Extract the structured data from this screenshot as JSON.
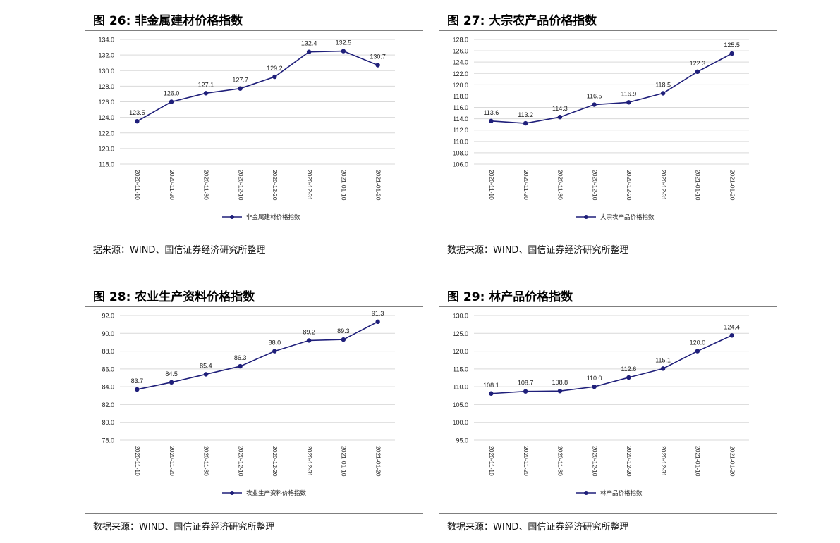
{
  "panels": [
    {
      "title": "图 26:  非金属建材价格指数",
      "source": "据来源：WIND、国信证券经济研究所整理",
      "chart_data": {
        "type": "line",
        "categories": [
          "2020-11-10",
          "2020-11-20",
          "2020-11-30",
          "2020-12-10",
          "2020-12-20",
          "2020-12-31",
          "2021-01-10",
          "2021-01-20"
        ],
        "series": [
          {
            "name": "非金属建材价格指数",
            "values": [
              123.5,
              126.0,
              127.1,
              127.7,
              129.2,
              132.4,
              132.5,
              130.7
            ]
          }
        ],
        "ylim": [
          118.0,
          134.0
        ],
        "yticks": [
          "118.0",
          "120.0",
          "122.0",
          "124.0",
          "126.0",
          "128.0",
          "130.0",
          "132.0",
          "134.0"
        ],
        "data_labels": [
          "123.5",
          "126.0",
          "127.1",
          "127.7",
          "129.2",
          "132.4",
          "132.5",
          "130.7"
        ],
        "grid": true,
        "legend_position": "bottom",
        "color": "#1f1f7a"
      }
    },
    {
      "title": "图 27:  大宗农产品价格指数",
      "source": "数据来源：WIND、国信证券经济研究所整理",
      "chart_data": {
        "type": "line",
        "categories": [
          "2020-11-10",
          "2020-11-20",
          "2020-11-30",
          "2020-12-10",
          "2020-12-20",
          "2020-12-31",
          "2021-01-10",
          "2021-01-20"
        ],
        "series": [
          {
            "name": "大宗农产品价格指数",
            "values": [
              113.6,
              113.2,
              114.3,
              116.5,
              116.9,
              118.5,
              122.3,
              125.5
            ]
          }
        ],
        "ylim": [
          106.0,
          128.0
        ],
        "yticks": [
          "106.0",
          "108.0",
          "110.0",
          "112.0",
          "114.0",
          "116.0",
          "118.0",
          "120.0",
          "122.0",
          "124.0",
          "126.0",
          "128.0"
        ],
        "data_labels": [
          "113.6",
          "113.2",
          "114.3",
          "116.5",
          "116.9",
          "118.5",
          "122.3",
          "125.5"
        ],
        "grid": true,
        "legend_position": "bottom",
        "color": "#1f1f7a"
      }
    },
    {
      "title": "图 28:  农业生产资料价格指数",
      "source": "数据来源：WIND、国信证券经济研究所整理",
      "chart_data": {
        "type": "line",
        "categories": [
          "2020-11-10",
          "2020-11-20",
          "2020-11-30",
          "2020-12-10",
          "2020-12-20",
          "2020-12-31",
          "2021-01-10",
          "2021-01-20"
        ],
        "series": [
          {
            "name": "农业生产资料价格指数",
            "values": [
              83.7,
              84.5,
              85.4,
              86.3,
              88.0,
              89.2,
              89.3,
              91.3
            ]
          }
        ],
        "ylim": [
          78.0,
          92.0
        ],
        "yticks": [
          "78.0",
          "80.0",
          "82.0",
          "84.0",
          "86.0",
          "88.0",
          "90.0",
          "92.0"
        ],
        "data_labels": [
          "83.7",
          "84.5",
          "85.4",
          "86.3",
          "88.0",
          "89.2",
          "89.3",
          "91.3"
        ],
        "grid": true,
        "legend_position": "bottom",
        "color": "#1f1f7a"
      }
    },
    {
      "title": "图 29:  林产品价格指数",
      "source": "数据来源：WIND、国信证券经济研究所整理",
      "chart_data": {
        "type": "line",
        "categories": [
          "2020-11-10",
          "2020-11-20",
          "2020-11-30",
          "2020-12-10",
          "2020-12-20",
          "2020-12-31",
          "2021-01-10",
          "2021-01-20"
        ],
        "series": [
          {
            "name": "林产品价格指数",
            "values": [
              108.1,
              108.7,
              108.8,
              110.0,
              112.6,
              115.1,
              120.0,
              124.4
            ]
          }
        ],
        "ylim": [
          95.0,
          130.0
        ],
        "yticks": [
          "95.0",
          "100.0",
          "105.0",
          "110.0",
          "115.0",
          "120.0",
          "125.0",
          "130.0"
        ],
        "data_labels": [
          "108.1",
          "108.7",
          "108.8",
          "110.0",
          "112.6",
          "115.1",
          "120.0",
          "124.4"
        ],
        "grid": true,
        "legend_position": "bottom",
        "color": "#1f1f7a"
      }
    }
  ]
}
